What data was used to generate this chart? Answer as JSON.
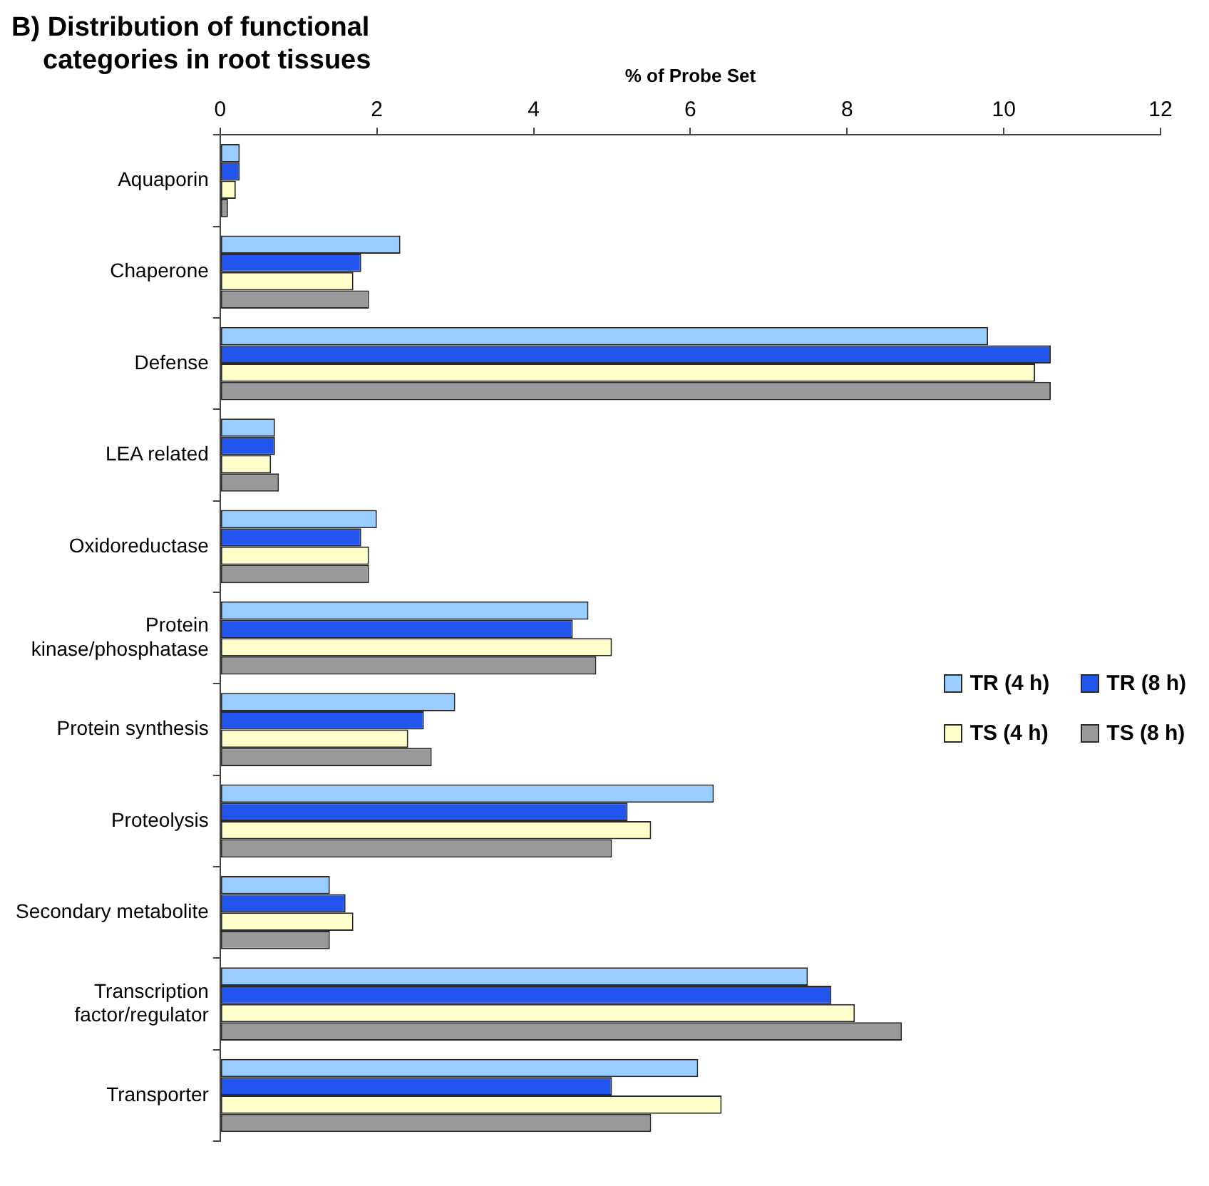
{
  "chart_data": {
    "type": "bar",
    "orientation": "horizontal",
    "title": "B) Distribution of functional categories in root tissues",
    "xlabel": "% of Probe Set",
    "categories": [
      "Aquaporin",
      "Chaperone",
      "Defense",
      "LEA related",
      "Oxidoreductase",
      "Protein kinase/phosphatase",
      "Protein synthesis",
      "Proteolysis",
      "Secondary metabolite",
      "Transcription factor/regulator",
      "Transporter"
    ],
    "series": [
      {
        "name": "TR (4 h)",
        "color": "#99ccff",
        "values": [
          0.25,
          2.3,
          9.8,
          0.7,
          2.0,
          4.7,
          3.0,
          6.3,
          1.4,
          7.5,
          6.1
        ]
      },
      {
        "name": "TR (8 h)",
        "color": "#2255ee",
        "values": [
          0.25,
          1.8,
          10.6,
          0.7,
          1.8,
          4.5,
          2.6,
          5.2,
          1.6,
          7.8,
          5.0
        ]
      },
      {
        "name": "TS (4 h)",
        "color": "#ffffcc",
        "values": [
          0.2,
          1.7,
          10.4,
          0.65,
          1.9,
          5.0,
          2.4,
          5.5,
          1.7,
          8.1,
          6.4
        ]
      },
      {
        "name": "TS (8 h)",
        "color": "#999999",
        "values": [
          0.1,
          1.9,
          10.6,
          0.75,
          1.9,
          4.8,
          2.7,
          5.0,
          1.4,
          8.7,
          5.5
        ]
      }
    ],
    "xlim": [
      0,
      12
    ],
    "xticks": [
      0,
      2,
      4,
      6,
      8,
      10,
      12
    ],
    "grid": false,
    "legend": "right"
  }
}
